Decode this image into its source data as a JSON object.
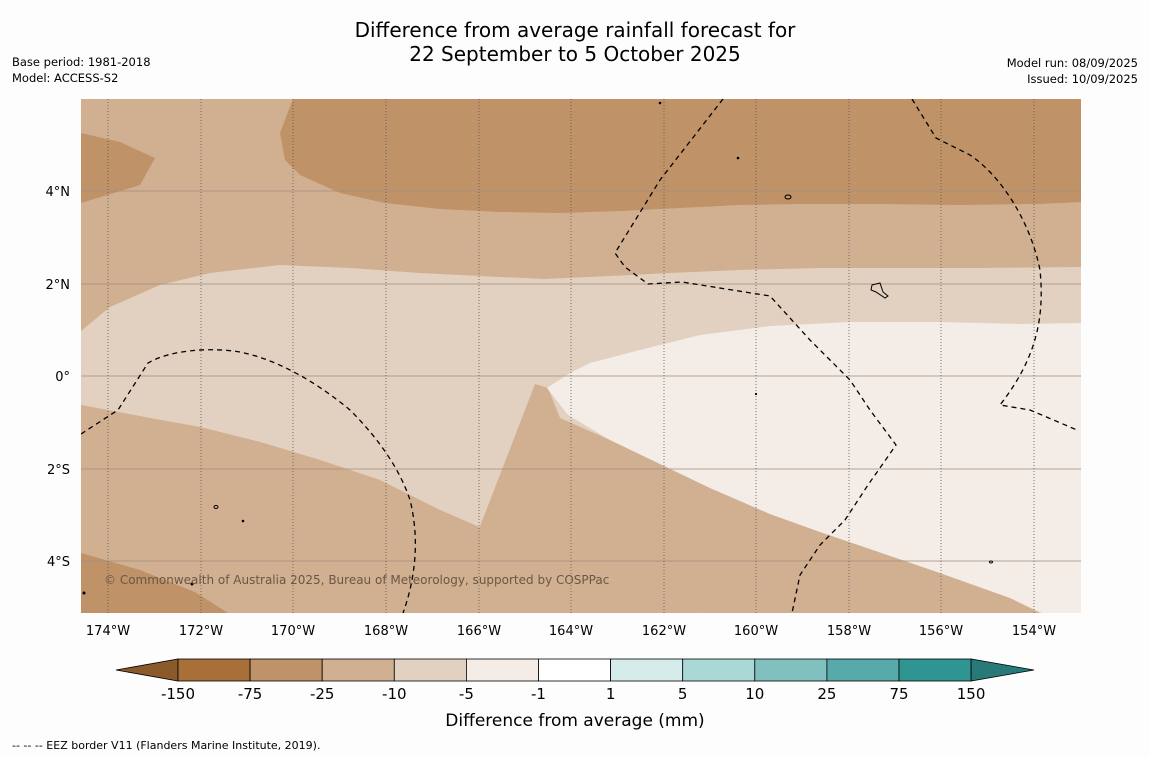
{
  "title": {
    "line1": "Difference from average rainfall forecast for",
    "line2": "22 September to 5 October 2025"
  },
  "meta": {
    "base_period": "Base period: 1981-2018",
    "model": "Model: ACCESS-S2",
    "model_run": "Model run: 08/09/2025",
    "issued": "Issued: 10/09/2025"
  },
  "map": {
    "lon_labels": [
      "174°W",
      "172°W",
      "170°W",
      "168°W",
      "166°W",
      "164°W",
      "162°W",
      "160°W",
      "158°W",
      "156°W",
      "154°W"
    ],
    "lat_labels": [
      "4°N",
      "2°N",
      "0°",
      "2°S",
      "4°S"
    ],
    "copyright": "© Commonwealth of Australia 2025, Bureau of Meteorology, supported by COSPPac"
  },
  "colorbar": {
    "ticks": [
      "-150",
      "-75",
      "-25",
      "-10",
      "-5",
      "-1",
      "1",
      "5",
      "10",
      "25",
      "75",
      "150"
    ],
    "colors": [
      "#a87038",
      "#bf9267",
      "#d1b092",
      "#e2d1c1",
      "#f4ece6",
      "#ffffff",
      "#d6ecea",
      "#aad8d6",
      "#80c1bf",
      "#56aaa9",
      "#2e9592"
    ],
    "under_color": "#8b5a2b",
    "over_color": "#277a78",
    "label": "Difference from average (mm)"
  },
  "footnote": "--  --  -- EEZ border V11 (Flanders Marine Institute, 2019).",
  "palette": {
    "c1": "#bf9267",
    "c2": "#d1b092",
    "c3": "#e2d1c1",
    "c4": "#f4ece6"
  }
}
